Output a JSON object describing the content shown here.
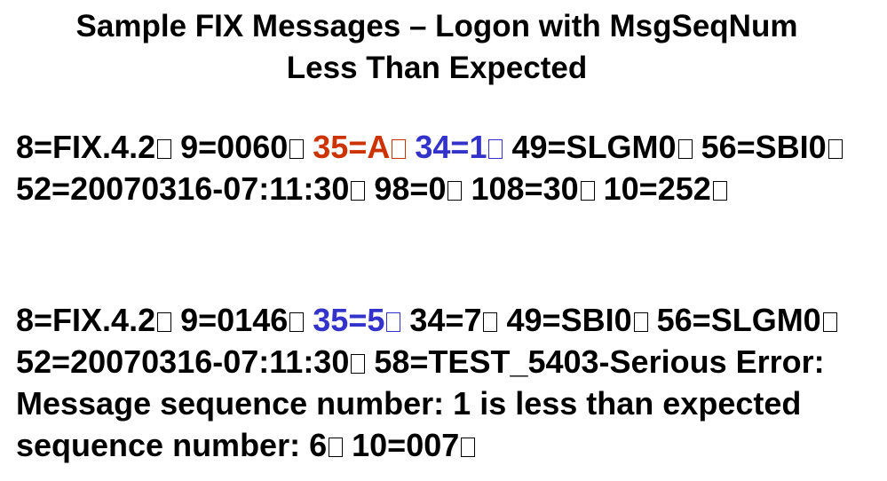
{
  "title": {
    "line1": "Sample FIX Messages – Logon with MsgSeqNum",
    "line2": "Less Than Expected"
  },
  "colors": {
    "msg_type_logon": "#cc3300",
    "highlight_blue": "#3333cc",
    "text": "#000000"
  },
  "messages": [
    {
      "fields": [
        {
          "text": "8=FIX.4.2",
          "color": "default"
        },
        {
          "text": "9=0060",
          "color": "default"
        },
        {
          "text": "35=A",
          "color": "red"
        },
        {
          "text": "34=1",
          "color": "blue"
        },
        {
          "text": "49=SLGM0",
          "color": "default"
        },
        {
          "text": "56=SBI0",
          "color": "default"
        },
        {
          "text": "52=20070316-07:11:30",
          "color": "default"
        },
        {
          "text": "98=0",
          "color": "default"
        },
        {
          "text": "108=30",
          "color": "default"
        },
        {
          "text": "10=252",
          "color": "default"
        }
      ]
    },
    {
      "fields": [
        {
          "text": "8=FIX.4.2",
          "color": "default"
        },
        {
          "text": "9=0146",
          "color": "default"
        },
        {
          "text": "35=5",
          "color": "blue"
        },
        {
          "text": "34=7",
          "color": "default"
        },
        {
          "text": "49=SBI0",
          "color": "default"
        },
        {
          "text": "56=SLGM0",
          "color": "default"
        },
        {
          "text": "52=20070316-07:11:30",
          "color": "default"
        },
        {
          "text": "58=TEST_5403-Serious Error:  Message sequence number: 1 is less than expected sequence number: 6",
          "color": "default"
        },
        {
          "text": "10=007",
          "color": "default"
        }
      ]
    }
  ]
}
